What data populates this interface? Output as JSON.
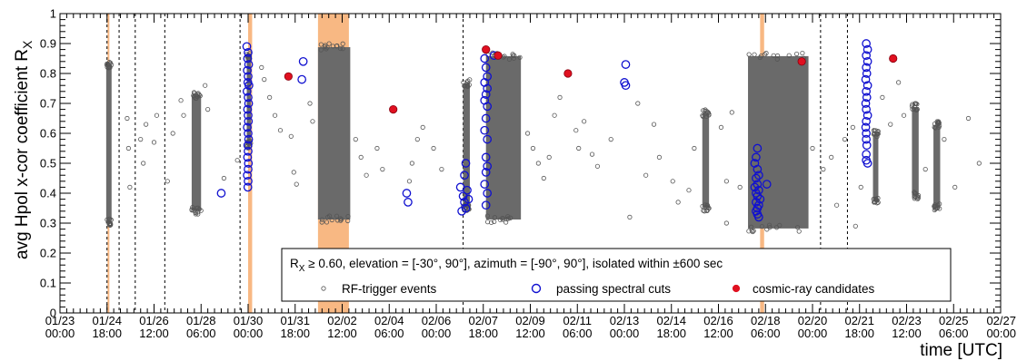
{
  "chart_data": {
    "type": "scatter",
    "title": "",
    "ylabel": "avg Hpol x-cor coefficient R",
    "ylabel_subscript": "X",
    "xlabel": "time [UTC]",
    "ylim": [
      0,
      1
    ],
    "x_range": [
      "01/23 00:00",
      "02/27 00:00"
    ],
    "x_unit": "day-of-year (Jan 23 = 23, Feb 1 = 32)",
    "xlim": [
      23.0,
      58.0
    ],
    "y_ticks": [
      "0",
      "0.1",
      "0.2",
      "0.3",
      "0.4",
      "0.5",
      "0.6",
      "0.7",
      "0.8",
      "0.9",
      "1"
    ],
    "x_ticks": [
      {
        "d": 23.0,
        "date": "01/23",
        "time": "00:00"
      },
      {
        "d": 24.75,
        "date": "01/24",
        "time": "18:00"
      },
      {
        "d": 26.5,
        "date": "01/26",
        "time": "12:00"
      },
      {
        "d": 28.25,
        "date": "01/28",
        "time": "06:00"
      },
      {
        "d": 30.0,
        "date": "01/30",
        "time": "00:00"
      },
      {
        "d": 31.75,
        "date": "01/31",
        "time": "18:00"
      },
      {
        "d": 33.5,
        "date": "02/02",
        "time": "12:00"
      },
      {
        "d": 35.25,
        "date": "02/04",
        "time": "06:00"
      },
      {
        "d": 37.0,
        "date": "02/06",
        "time": "00:00"
      },
      {
        "d": 38.75,
        "date": "02/07",
        "time": "18:00"
      },
      {
        "d": 40.5,
        "date": "02/09",
        "time": "12:00"
      },
      {
        "d": 42.25,
        "date": "02/11",
        "time": "06:00"
      },
      {
        "d": 44.0,
        "date": "02/13",
        "time": "00:00"
      },
      {
        "d": 45.75,
        "date": "02/14",
        "time": "18:00"
      },
      {
        "d": 47.5,
        "date": "02/16",
        "time": "12:00"
      },
      {
        "d": 49.25,
        "date": "02/18",
        "time": "06:00"
      },
      {
        "d": 51.0,
        "date": "02/20",
        "time": "00:00"
      },
      {
        "d": 52.75,
        "date": "02/21",
        "time": "18:00"
      },
      {
        "d": 54.5,
        "date": "02/23",
        "time": "12:00"
      },
      {
        "d": 56.25,
        "date": "02/25",
        "time": "06:00"
      },
      {
        "d": 58.0,
        "date": "02/27",
        "time": "00:00"
      }
    ],
    "legend": {
      "placement": "bottom-right",
      "header_symbol": "R",
      "header_subscript": "X",
      "header_text": " ≥ 0.60, elevation = [-30°, 90°], azimuth = [-90°, 90°], isolated within ±600 sec",
      "entries": [
        {
          "label": "RF-trigger events",
          "marker": "small-open-circle"
        },
        {
          "label": "passing spectral cuts",
          "marker": "open-circle-blue"
        },
        {
          "label": "cosmic-ray candidates",
          "marker": "filled-circle-red"
        }
      ]
    },
    "shaded_bands": [
      {
        "start": 24.77,
        "end": 24.82,
        "color": "#f5a05a"
      },
      {
        "start": 30.0,
        "end": 30.15,
        "color": "#f5a05a"
      },
      {
        "start": 32.6,
        "end": 33.75,
        "color": "#f5a05a"
      },
      {
        "start": 49.05,
        "end": 49.2,
        "color": "#f5a05a"
      }
    ],
    "dashed_lines": [
      24.75,
      25.2,
      25.8,
      26.9,
      29.7,
      38.0,
      51.3,
      52.3
    ],
    "dense_clusters": [
      {
        "x_start": 24.72,
        "x_end": 24.92,
        "y_min": 0.29,
        "y_max": 0.84
      },
      {
        "x_start": 27.9,
        "x_end": 28.25,
        "y_min": 0.33,
        "y_max": 0.74
      },
      {
        "x_start": 29.95,
        "x_end": 30.1,
        "y_min": 0.55,
        "y_max": 0.87
      },
      {
        "x_start": 32.6,
        "x_end": 33.8,
        "y_min": 0.3,
        "y_max": 0.9
      },
      {
        "x_start": 38.0,
        "x_end": 38.25,
        "y_min": 0.34,
        "y_max": 0.78
      },
      {
        "x_start": 38.85,
        "x_end": 40.15,
        "y_min": 0.3,
        "y_max": 0.87
      },
      {
        "x_start": 46.9,
        "x_end": 47.15,
        "y_min": 0.34,
        "y_max": 0.68
      },
      {
        "x_start": 48.6,
        "x_end": 50.85,
        "y_min": 0.27,
        "y_max": 0.87
      },
      {
        "x_start": 53.25,
        "x_end": 53.45,
        "y_min": 0.36,
        "y_max": 0.61
      },
      {
        "x_start": 54.7,
        "x_end": 54.95,
        "y_min": 0.38,
        "y_max": 0.7
      },
      {
        "x_start": 55.5,
        "x_end": 55.75,
        "y_min": 0.34,
        "y_max": 0.64
      }
    ],
    "series": [
      {
        "name": "passing spectral cuts",
        "points": [
          [
            29.95,
            0.89
          ],
          [
            30.0,
            0.87
          ],
          [
            29.98,
            0.85
          ],
          [
            30.02,
            0.83
          ],
          [
            29.97,
            0.81
          ],
          [
            30.0,
            0.79
          ],
          [
            29.99,
            0.77
          ],
          [
            30.03,
            0.76
          ],
          [
            29.96,
            0.74
          ],
          [
            30.0,
            0.72
          ],
          [
            30.02,
            0.7
          ],
          [
            29.98,
            0.68
          ],
          [
            30.0,
            0.66
          ],
          [
            30.01,
            0.64
          ],
          [
            29.97,
            0.62
          ],
          [
            30.0,
            0.6
          ],
          [
            30.02,
            0.58
          ],
          [
            29.99,
            0.56
          ],
          [
            30.0,
            0.54
          ],
          [
            29.98,
            0.52
          ],
          [
            30.01,
            0.5
          ],
          [
            30.0,
            0.48
          ],
          [
            29.97,
            0.46
          ],
          [
            30.0,
            0.44
          ],
          [
            29.99,
            0.42
          ],
          [
            29.0,
            0.4
          ],
          [
            32.05,
            0.84
          ],
          [
            32.0,
            0.78
          ],
          [
            35.9,
            0.4
          ],
          [
            35.95,
            0.37
          ],
          [
            37.9,
            0.42
          ],
          [
            38.0,
            0.39
          ],
          [
            38.05,
            0.37
          ],
          [
            38.1,
            0.35
          ],
          [
            37.95,
            0.34
          ],
          [
            38.15,
            0.41
          ],
          [
            38.2,
            0.38
          ],
          [
            38.1,
            0.5
          ],
          [
            38.05,
            0.46
          ],
          [
            38.8,
            0.85
          ],
          [
            38.85,
            0.82
          ],
          [
            38.9,
            0.79
          ],
          [
            38.8,
            0.77
          ],
          [
            38.9,
            0.75
          ],
          [
            38.85,
            0.73
          ],
          [
            38.8,
            0.71
          ],
          [
            38.9,
            0.69
          ],
          [
            38.85,
            0.65
          ],
          [
            38.8,
            0.61
          ],
          [
            38.9,
            0.58
          ],
          [
            38.85,
            0.52
          ],
          [
            38.9,
            0.49
          ],
          [
            38.85,
            0.47
          ],
          [
            38.8,
            0.43
          ],
          [
            38.9,
            0.4
          ],
          [
            38.85,
            0.36
          ],
          [
            39.15,
            0.86
          ],
          [
            44.05,
            0.83
          ],
          [
            44.0,
            0.77
          ],
          [
            44.05,
            0.76
          ],
          [
            48.95,
            0.55
          ],
          [
            48.9,
            0.52
          ],
          [
            48.85,
            0.5
          ],
          [
            48.95,
            0.48
          ],
          [
            49.0,
            0.46
          ],
          [
            48.9,
            0.45
          ],
          [
            48.95,
            0.43
          ],
          [
            48.85,
            0.42
          ],
          [
            49.0,
            0.41
          ],
          [
            48.9,
            0.4
          ],
          [
            48.95,
            0.39
          ],
          [
            49.05,
            0.38
          ],
          [
            48.9,
            0.37
          ],
          [
            49.0,
            0.36
          ],
          [
            48.95,
            0.35
          ],
          [
            48.9,
            0.34
          ],
          [
            48.95,
            0.33
          ],
          [
            49.0,
            0.32
          ],
          [
            49.3,
            0.43
          ],
          [
            53.0,
            0.9
          ],
          [
            53.05,
            0.88
          ],
          [
            53.0,
            0.86
          ],
          [
            53.05,
            0.84
          ],
          [
            53.0,
            0.82
          ],
          [
            53.02,
            0.8
          ],
          [
            52.98,
            0.78
          ],
          [
            53.05,
            0.76
          ],
          [
            53.0,
            0.74
          ],
          [
            53.02,
            0.72
          ],
          [
            52.98,
            0.7
          ],
          [
            53.0,
            0.68
          ],
          [
            53.05,
            0.66
          ],
          [
            53.0,
            0.64
          ],
          [
            52.98,
            0.62
          ],
          [
            53.0,
            0.6
          ],
          [
            53.0,
            0.58
          ],
          [
            53.02,
            0.56
          ],
          [
            53.0,
            0.53
          ],
          [
            53.0,
            0.51
          ],
          [
            53.05,
            0.5
          ]
        ]
      },
      {
        "name": "cosmic-ray candidates",
        "points": [
          [
            31.5,
            0.79
          ],
          [
            35.4,
            0.68
          ],
          [
            38.85,
            0.88
          ],
          [
            39.3,
            0.86
          ],
          [
            41.9,
            0.8
          ],
          [
            50.6,
            0.84
          ],
          [
            54.0,
            0.85
          ]
        ]
      },
      {
        "name": "RF-trigger events",
        "points": [
          [
            25.5,
            0.65
          ],
          [
            25.55,
            0.55
          ],
          [
            25.6,
            0.42
          ],
          [
            26.0,
            0.58
          ],
          [
            26.1,
            0.5
          ],
          [
            26.2,
            0.63
          ],
          [
            26.5,
            0.57
          ],
          [
            26.6,
            0.66
          ],
          [
            27.0,
            0.44
          ],
          [
            27.2,
            0.6
          ],
          [
            27.5,
            0.71
          ],
          [
            27.6,
            0.66
          ],
          [
            28.4,
            0.76
          ],
          [
            28.5,
            0.68
          ],
          [
            29.1,
            0.45
          ],
          [
            29.6,
            0.51
          ],
          [
            30.5,
            0.82
          ],
          [
            30.6,
            0.78
          ],
          [
            30.8,
            0.72
          ],
          [
            31.0,
            0.66
          ],
          [
            31.2,
            0.61
          ],
          [
            31.6,
            0.59
          ],
          [
            31.7,
            0.47
          ],
          [
            31.8,
            0.43
          ],
          [
            32.3,
            0.7
          ],
          [
            32.4,
            0.64
          ],
          [
            34.0,
            0.58
          ],
          [
            34.2,
            0.52
          ],
          [
            34.4,
            0.46
          ],
          [
            34.8,
            0.55
          ],
          [
            35.0,
            0.48
          ],
          [
            36.0,
            0.44
          ],
          [
            36.1,
            0.5
          ],
          [
            36.3,
            0.58
          ],
          [
            36.5,
            0.62
          ],
          [
            36.9,
            0.55
          ],
          [
            37.2,
            0.48
          ],
          [
            40.4,
            0.6
          ],
          [
            40.6,
            0.55
          ],
          [
            40.8,
            0.5
          ],
          [
            41.0,
            0.45
          ],
          [
            41.2,
            0.52
          ],
          [
            41.4,
            0.66
          ],
          [
            41.6,
            0.72
          ],
          [
            42.2,
            0.61
          ],
          [
            42.3,
            0.55
          ],
          [
            42.5,
            0.64
          ],
          [
            42.8,
            0.53
          ],
          [
            43.0,
            0.49
          ],
          [
            43.5,
            0.58
          ],
          [
            44.5,
            0.7
          ],
          [
            44.8,
            0.46
          ],
          [
            45.1,
            0.63
          ],
          [
            45.3,
            0.52
          ],
          [
            45.8,
            0.44
          ],
          [
            46.0,
            0.37
          ],
          [
            46.4,
            0.41
          ],
          [
            46.6,
            0.55
          ],
          [
            47.6,
            0.62
          ],
          [
            47.8,
            0.44
          ],
          [
            48.0,
            0.67
          ],
          [
            48.3,
            0.42
          ],
          [
            51.0,
            0.55
          ],
          [
            51.4,
            0.48
          ],
          [
            51.7,
            0.52
          ],
          [
            51.9,
            0.36
          ],
          [
            52.2,
            0.58
          ],
          [
            52.5,
            0.62
          ],
          [
            52.8,
            0.42
          ],
          [
            53.6,
            0.72
          ],
          [
            53.9,
            0.63
          ],
          [
            54.2,
            0.77
          ],
          [
            54.4,
            0.66
          ],
          [
            55.2,
            0.48
          ],
          [
            55.9,
            0.58
          ],
          [
            56.3,
            0.42
          ],
          [
            56.8,
            0.65
          ],
          [
            57.2,
            0.5
          ],
          [
            52.6,
            0.29
          ],
          [
            47.8,
            0.3
          ],
          [
            44.2,
            0.32
          ]
        ]
      }
    ]
  }
}
